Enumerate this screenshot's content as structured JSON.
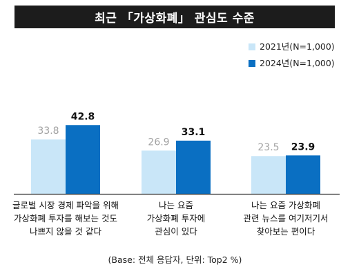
{
  "title": "최근 「가상화폐」 관심도 수준",
  "footnote": "(Base: 전체 응답자, 단위: Top2 %)",
  "colors": {
    "series2021": "#c9e6f8",
    "series2024": "#0a6fc2",
    "label2021": "#a2a2a2",
    "label2024": "#111111"
  },
  "chart_data": {
    "type": "bar",
    "title": "최근 「가상화폐」 관심도 수준",
    "categories": [
      [
        "글로벌 시장 경제 파악을 위해",
        "가상화폐 투자를 해보는 것도",
        "나쁘지 않을 것 같다"
      ],
      [
        "나는 요즘",
        "가상화폐 투자에",
        "관심이 있다"
      ],
      [
        "나는 요즘 가상화폐",
        "관련 뉴스를 여기저기서",
        "찾아보는 편이다"
      ]
    ],
    "series": [
      {
        "name": "2021년(N=1,000)",
        "values": [
          33.8,
          26.9,
          23.5
        ]
      },
      {
        "name": "2024년(N=1,000)",
        "values": [
          42.8,
          33.1,
          23.9
        ]
      }
    ],
    "legend": "top-right",
    "grid": false,
    "unit": "Top2 %"
  }
}
